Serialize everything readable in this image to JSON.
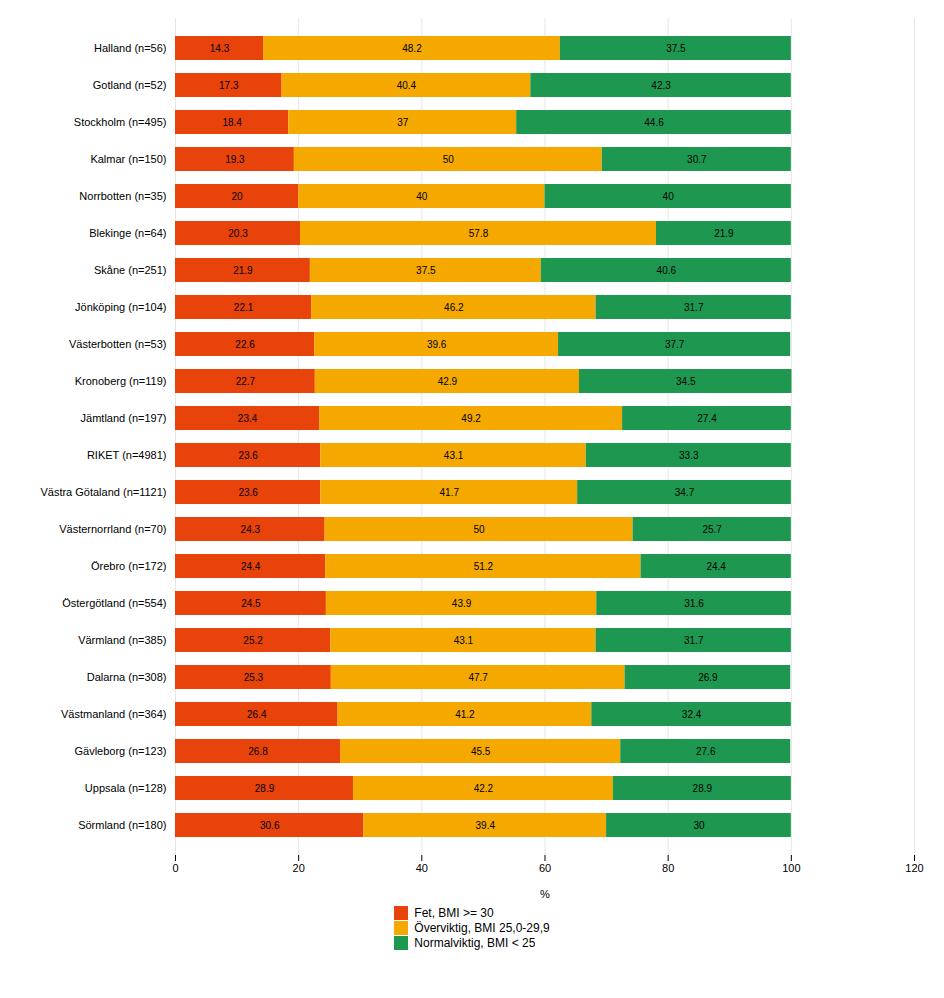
{
  "chart_data": {
    "type": "bar",
    "orientation": "horizontal",
    "stacked": true,
    "categories": [
      "Halland (n=56)",
      "Gotland (n=52)",
      "Stockholm (n=495)",
      "Kalmar (n=150)",
      "Norrbotten (n=35)",
      "Blekinge (n=64)",
      "Skåne (n=251)",
      "Jönköping (n=104)",
      "Västerbotten (n=53)",
      "Kronoberg (n=119)",
      "Jämtland (n=197)",
      "RIKET (n=4981)",
      "Västra Götaland (n=1121)",
      "Västernorrland (n=70)",
      "Örebro (n=172)",
      "Östergötland (n=554)",
      "Värmland (n=385)",
      "Dalarna (n=308)",
      "Västmanland (n=364)",
      "Gävleborg (n=123)",
      "Uppsala (n=128)",
      "Sörmland (n=180)"
    ],
    "series": [
      {
        "name": "Fet, BMI >= 30",
        "color": "#E8430A",
        "values": [
          14.3,
          17.3,
          18.4,
          19.3,
          20,
          20.3,
          21.9,
          22.1,
          22.6,
          22.7,
          23.4,
          23.6,
          23.6,
          24.3,
          24.4,
          24.5,
          25.2,
          25.3,
          26.4,
          26.8,
          28.9,
          30.6
        ]
      },
      {
        "name": "Överviktig, BMI 25,0-29,9",
        "color": "#F5A800",
        "values": [
          48.2,
          40.4,
          37,
          50,
          40,
          57.8,
          37.5,
          46.2,
          39.6,
          42.9,
          49.2,
          43.1,
          41.7,
          50,
          51.2,
          43.9,
          43.1,
          47.7,
          41.2,
          45.5,
          42.2,
          39.4
        ]
      },
      {
        "name": "Normalviktig, BMI < 25",
        "color": "#1E9850",
        "values": [
          37.5,
          42.3,
          44.6,
          30.7,
          40,
          21.9,
          40.6,
          31.7,
          37.7,
          34.5,
          27.4,
          33.3,
          34.7,
          25.7,
          24.4,
          31.6,
          31.7,
          26.9,
          32.4,
          27.6,
          28.9,
          30
        ]
      }
    ],
    "xlabel": "%",
    "xlim": [
      0,
      120
    ],
    "xticks": [
      0,
      20,
      40,
      60,
      80,
      100,
      120
    ],
    "grid": true,
    "data_labels": true,
    "legend": "bottom"
  }
}
